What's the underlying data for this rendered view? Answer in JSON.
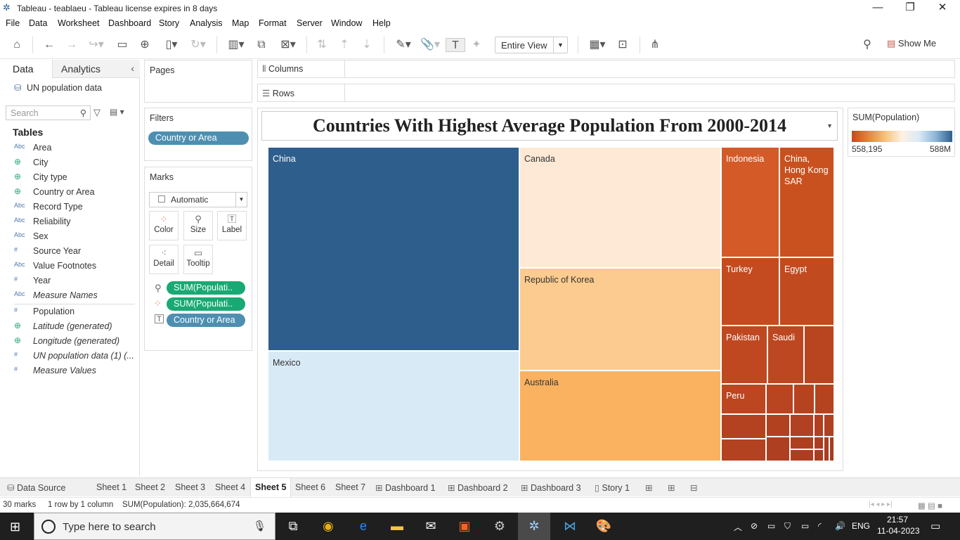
{
  "window": {
    "title": "Tableau - teablaeu - Tableau license expires in 8 days"
  },
  "menu": [
    "File",
    "Data",
    "Worksheet",
    "Dashboard",
    "Story",
    "Analysis",
    "Map",
    "Format",
    "Server",
    "Window",
    "Help"
  ],
  "toolbar": {
    "view_select": "Entire View",
    "show_me": "Show Me"
  },
  "left_pane": {
    "tab_data": "Data",
    "tab_analytics": "Analytics",
    "datasource": "UN population data",
    "search_placeholder": "Search",
    "tables_header": "Tables",
    "fields": [
      {
        "type": "Abc",
        "name": "Area",
        "italic": false
      },
      {
        "type": "geo",
        "name": "City",
        "italic": false
      },
      {
        "type": "geo",
        "name": "City type",
        "italic": false
      },
      {
        "type": "geo",
        "name": "Country or Area",
        "italic": false
      },
      {
        "type": "Abc",
        "name": "Record Type",
        "italic": false
      },
      {
        "type": "Abc",
        "name": "Reliability",
        "italic": false
      },
      {
        "type": "Abc",
        "name": "Sex",
        "italic": false
      },
      {
        "type": "#",
        "name": "Source Year",
        "italic": false
      },
      {
        "type": "Abc",
        "name": "Value Footnotes",
        "italic": false
      },
      {
        "type": "#",
        "name": "Year",
        "italic": false
      },
      {
        "type": "Abc",
        "name": "Measure Names",
        "italic": true
      },
      {
        "type": "#",
        "name": "Population",
        "italic": false
      },
      {
        "type": "geo",
        "name": "Latitude (generated)",
        "italic": true
      },
      {
        "type": "geo",
        "name": "Longitude (generated)",
        "italic": true
      },
      {
        "type": "#",
        "name": "UN population data (1) (...",
        "italic": true
      },
      {
        "type": "#",
        "name": "Measure Values",
        "italic": true
      }
    ]
  },
  "shelves": {
    "pages": "Pages",
    "filters": "Filters",
    "filter_pill": "Country or Area",
    "marks": "Marks",
    "mark_type": "Automatic",
    "mark_buttons": [
      "Color",
      "Size",
      "Label",
      "Detail",
      "Tooltip"
    ],
    "mark_pills": [
      "SUM(Populati..",
      "SUM(Populati..",
      "Country or Area"
    ],
    "columns": "Columns",
    "rows": "Rows"
  },
  "chart_data": {
    "type": "treemap",
    "title": "Countries With Highest Average Population From 2000-2014",
    "measure": "SUM(Population)",
    "legend": {
      "title": "SUM(Population)",
      "min_label": "558,195",
      "max_label": "588M",
      "placement": "right"
    },
    "labeled_cells": [
      {
        "name": "China",
        "color": "#2e5e8c"
      },
      {
        "name": "Mexico",
        "color": "#d8eaf6"
      },
      {
        "name": "Canada",
        "color": "#fde9d6"
      },
      {
        "name": "Republic of Korea",
        "color": "#fccb8f"
      },
      {
        "name": "Australia",
        "color": "#fbb260"
      },
      {
        "name": "Indonesia",
        "color": "#d45a27"
      },
      {
        "name": "China, Hong Kong SAR",
        "color": "#c9511f"
      },
      {
        "name": "Turkey",
        "color": "#c34b1f"
      },
      {
        "name": "Egypt",
        "color": "#c14a1f"
      },
      {
        "name": "Pakistan",
        "color": "#bf4820"
      },
      {
        "name": "Saudi",
        "color": "#bd4720"
      },
      {
        "name": "Peru",
        "color": "#bb4620"
      }
    ],
    "total_marks": 30
  },
  "sheets": [
    "Data Source",
    "Sheet 1",
    "Sheet 2",
    "Sheet 3",
    "Sheet 4",
    "Sheet 5",
    "Sheet 6",
    "Sheet 7",
    "Dashboard 1",
    "Dashboard 2",
    "Dashboard 3",
    "Story 1"
  ],
  "active_sheet": "Sheet 5",
  "status": {
    "marks": "30 marks",
    "dims": "1 row by 1 column",
    "sum": "SUM(Population): 2,035,664,674"
  },
  "taskbar": {
    "search_placeholder": "Type here to search",
    "lang": "ENG",
    "time": "21:57",
    "date": "11-04-2023"
  }
}
